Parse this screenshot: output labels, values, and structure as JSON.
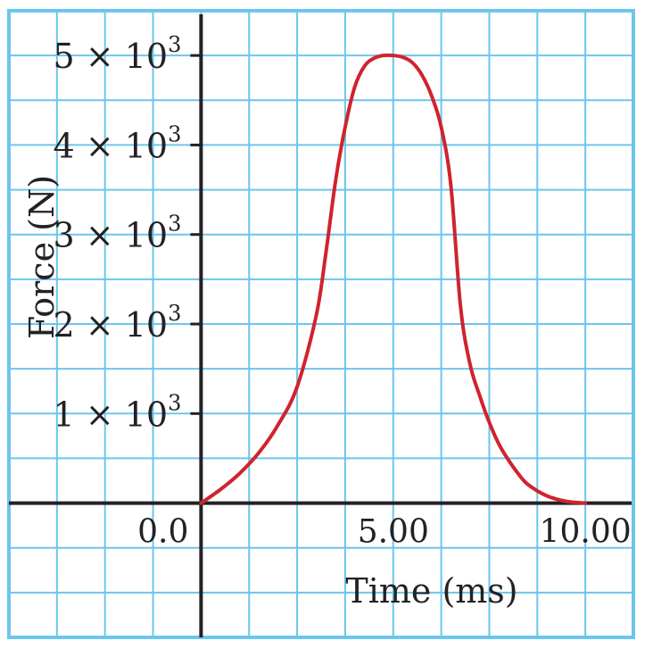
{
  "chart_data": {
    "type": "line",
    "xlabel": "Time (ms)",
    "ylabel": "Force (N)",
    "xlim": [
      -5.0,
      11.25
    ],
    "ylim": [
      -1500,
      5500
    ],
    "grid": true,
    "x_ticks": [
      {
        "value": 0.0,
        "label": "0.0"
      },
      {
        "value": 5.0,
        "label": "5.00"
      },
      {
        "value": 10.0,
        "label": "10.00"
      }
    ],
    "y_ticks": [
      {
        "value": 1000,
        "mantissa": "1",
        "times": "×",
        "base": "10",
        "exp": "3"
      },
      {
        "value": 2000,
        "mantissa": "2",
        "times": "×",
        "base": "10",
        "exp": "3"
      },
      {
        "value": 3000,
        "mantissa": "3",
        "times": "×",
        "base": "10",
        "exp": "3"
      },
      {
        "value": 4000,
        "mantissa": "4",
        "times": "×",
        "base": "10",
        "exp": "3"
      },
      {
        "value": 5000,
        "mantissa": "5",
        "times": "×",
        "base": "10",
        "exp": "3"
      }
    ],
    "series": [
      {
        "color": "#d0232e",
        "x": [
          0,
          0.5,
          1.0,
          1.5,
          2.0,
          2.5,
          3.0,
          3.25,
          3.5,
          3.75,
          4.0,
          4.25,
          4.5,
          4.75,
          5.0,
          5.25,
          5.5,
          5.75,
          6.0,
          6.25,
          6.5,
          6.75,
          7.0,
          7.25,
          7.5,
          7.75,
          8.0,
          8.25,
          8.5,
          9.0,
          9.5,
          10.0
        ],
        "y": [
          0,
          150,
          330,
          560,
          870,
          1300,
          2100,
          2800,
          3600,
          4200,
          4650,
          4880,
          4970,
          5000,
          5000,
          4980,
          4920,
          4780,
          4550,
          4200,
          3550,
          2200,
          1550,
          1200,
          900,
          660,
          480,
          330,
          210,
          80,
          20,
          0
        ]
      }
    ],
    "colors": {
      "grid": "#6cc6ec",
      "border": "#6cc6ec",
      "axis": "#222222",
      "curve": "#d0232e"
    }
  }
}
